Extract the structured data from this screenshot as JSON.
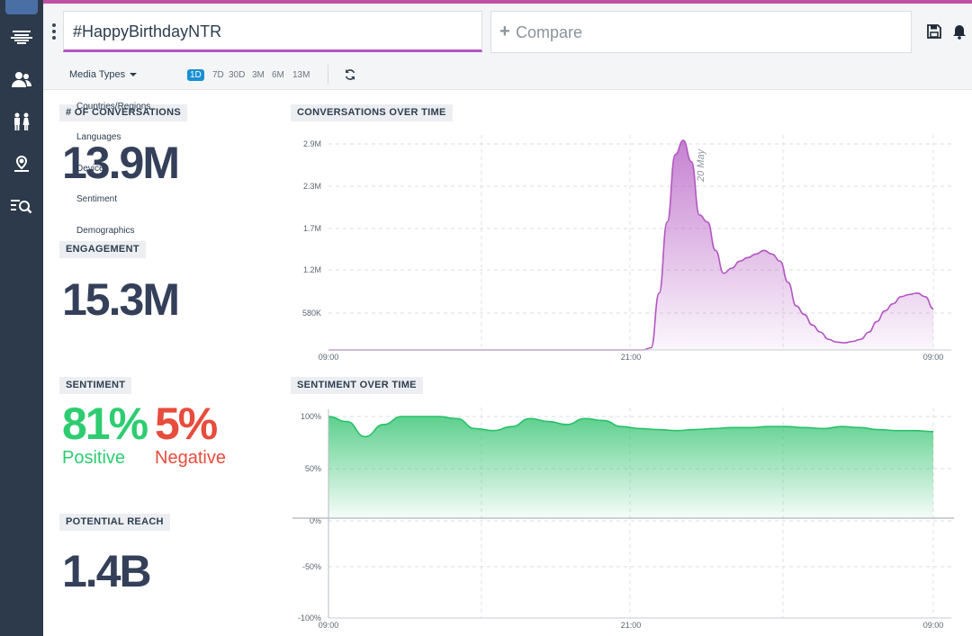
{
  "query": {
    "text": "#HappyBirthdayNTR"
  },
  "compare": {
    "plus": "+",
    "label": "Compare"
  },
  "filters": {
    "media_types": "Media Types",
    "ranges": [
      "1D",
      "7D",
      "30D",
      "3M",
      "6M",
      "13M"
    ],
    "active_range": "1D"
  },
  "menu": [
    "Countries/Regions",
    "Languages",
    "Devices",
    "Sentiment",
    "Demographics"
  ],
  "metrics": {
    "conversations": {
      "label": "# OF CONVERSATIONS",
      "value": "13.9M"
    },
    "engagement": {
      "label": "ENGAGEMENT",
      "value": "15.3M"
    },
    "sentiment": {
      "label": "SENTIMENT",
      "positive_value": "81%",
      "positive_label": "Positive",
      "negative_value": "5%",
      "negative_label": "Negative"
    },
    "reach": {
      "label": "POTENTIAL REACH",
      "value": "1.4B"
    }
  },
  "colors": {
    "accent": "#c050a6",
    "sidebar": "#2c3a4b",
    "positive": "#2ecc71",
    "negative": "#e74c3c",
    "conversations_line": "#b357c2",
    "sentiment_line": "#27c068",
    "range_active": "#1a8fd4"
  },
  "chart_data": [
    {
      "type": "area",
      "title": "CONVERSATIONS OVER TIME",
      "annotation": "20 May",
      "x_labels": [
        "09:00",
        "21:00",
        "09:00"
      ],
      "y_labels": [
        "2.9M",
        "2.3M",
        "1.7M",
        "1.2M",
        "580K"
      ],
      "ylim": [
        0,
        2900000
      ],
      "series": [
        {
          "values": [
            0,
            0,
            0,
            0,
            0,
            0,
            0,
            0,
            0,
            0,
            0,
            0,
            0,
            0,
            0,
            0,
            0,
            0,
            0,
            0,
            0,
            0,
            0,
            0,
            0,
            0,
            0,
            0,
            0,
            0,
            0,
            0,
            0,
            0,
            0,
            0,
            0,
            0,
            0,
            0,
            30000,
            800000,
            1800000,
            2750000,
            2950000,
            2650000,
            1900000,
            1800000,
            1400000,
            1080000,
            1150000,
            1250000,
            1300000,
            1350000,
            1400000,
            1350000,
            1250000,
            950000,
            620000,
            500000,
            350000,
            250000,
            150000,
            110000,
            100000,
            120000,
            150000,
            250000,
            400000,
            550000,
            650000,
            750000,
            780000,
            800000,
            750000,
            580000
          ]
        }
      ],
      "grid": true
    },
    {
      "type": "area",
      "title": "SENTIMENT OVER TIME",
      "x_labels": [
        "09:00",
        "21:00",
        "09:00"
      ],
      "y_labels": [
        "100%",
        "50%",
        "0%",
        "-50%",
        "-100%"
      ],
      "ylim": [
        -100,
        100
      ],
      "series": [
        {
          "values": [
            100,
            95,
            80,
            92,
            100,
            100,
            100,
            98,
            88,
            86,
            90,
            98,
            95,
            92,
            98,
            96,
            90,
            88,
            87,
            86,
            87,
            88,
            89,
            89,
            90,
            90,
            89,
            88,
            90,
            89,
            87,
            86,
            86,
            85
          ]
        }
      ],
      "grid": true
    }
  ]
}
